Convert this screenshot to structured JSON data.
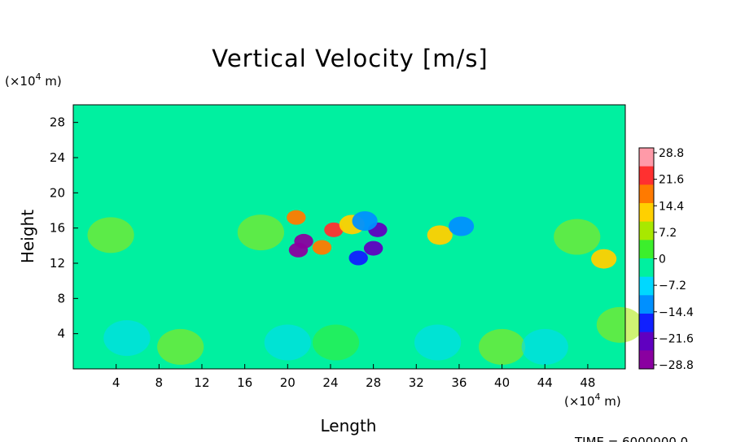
{
  "chart_data": {
    "type": "heatmap",
    "title": "Vertical Velocity [m/s]",
    "xlabel": "Length",
    "ylabel": "Height",
    "x_unit_label": "(×10",
    "x_unit_exp": "4",
    "x_unit_tail": " m)",
    "y_unit_label": "(×10",
    "y_unit_exp": "4",
    "y_unit_tail": " m)",
    "xlim": [
      0,
      51.5
    ],
    "ylim": [
      0,
      30
    ],
    "x_ticks": [
      "4",
      "8",
      "12",
      "16",
      "20",
      "24",
      "28",
      "32",
      "36",
      "40",
      "44",
      "48"
    ],
    "x_tick_values": [
      4,
      8,
      12,
      16,
      20,
      24,
      28,
      32,
      36,
      40,
      44,
      48
    ],
    "y_ticks": [
      "4",
      "8",
      "12",
      "16",
      "20",
      "24",
      "28"
    ],
    "y_tick_values": [
      4,
      8,
      12,
      16,
      20,
      24,
      28
    ],
    "colorbar": {
      "labels": [
        "28.8",
        "21.6",
        "14.4",
        "7.2",
        "0",
        "−7.2",
        "−14.4",
        "−21.6",
        "−28.8"
      ],
      "values": [
        28.8,
        21.6,
        14.4,
        7.2,
        0,
        -7.2,
        -14.4,
        -21.6,
        -28.8
      ],
      "colors": [
        "#ff9aa8",
        "#ff3030",
        "#ff7a00",
        "#ffd000",
        "#a8e800",
        "#3cef2c",
        "#00f0a0",
        "#00d8ff",
        "#0090ff",
        "#1020ff",
        "#6000c0",
        "#8a00a0"
      ]
    },
    "background_value": 0,
    "features": [
      {
        "x": 21.0,
        "y": 13.5,
        "v": -28
      },
      {
        "x": 21.5,
        "y": 14.5,
        "v": -24
      },
      {
        "x": 20.8,
        "y": 17.2,
        "v": 18
      },
      {
        "x": 24.3,
        "y": 15.8,
        "v": 20
      },
      {
        "x": 23.2,
        "y": 13.8,
        "v": 16
      },
      {
        "x": 26.0,
        "y": 16.4,
        "v": 12
      },
      {
        "x": 28.4,
        "y": 15.8,
        "v": -22
      },
      {
        "x": 28.0,
        "y": 13.7,
        "v": -20
      },
      {
        "x": 26.6,
        "y": 12.6,
        "v": -18
      },
      {
        "x": 27.2,
        "y": 16.8,
        "v": -12
      },
      {
        "x": 34.2,
        "y": 15.2,
        "v": 14
      },
      {
        "x": 36.2,
        "y": 16.2,
        "v": -14
      },
      {
        "x": 17.5,
        "y": 15.5,
        "v": 6
      },
      {
        "x": 3.5,
        "y": 15.2,
        "v": 8
      },
      {
        "x": 49.5,
        "y": 12.5,
        "v": 10
      },
      {
        "x": 47.0,
        "y": 15.0,
        "v": 6
      },
      {
        "x": 10.0,
        "y": 2.5,
        "v": 6
      },
      {
        "x": 40.0,
        "y": 2.5,
        "v": 6
      },
      {
        "x": 5.0,
        "y": 3.5,
        "v": -6
      },
      {
        "x": 20.0,
        "y": 3.0,
        "v": -5
      },
      {
        "x": 34.0,
        "y": 3.0,
        "v": -6
      },
      {
        "x": 44.0,
        "y": 2.5,
        "v": -6
      },
      {
        "x": 24.5,
        "y": 3.0,
        "v": 4
      },
      {
        "x": 51.0,
        "y": 5.0,
        "v": 6
      }
    ]
  },
  "footer": {
    "time_label": "TIME = 6000000.0"
  }
}
